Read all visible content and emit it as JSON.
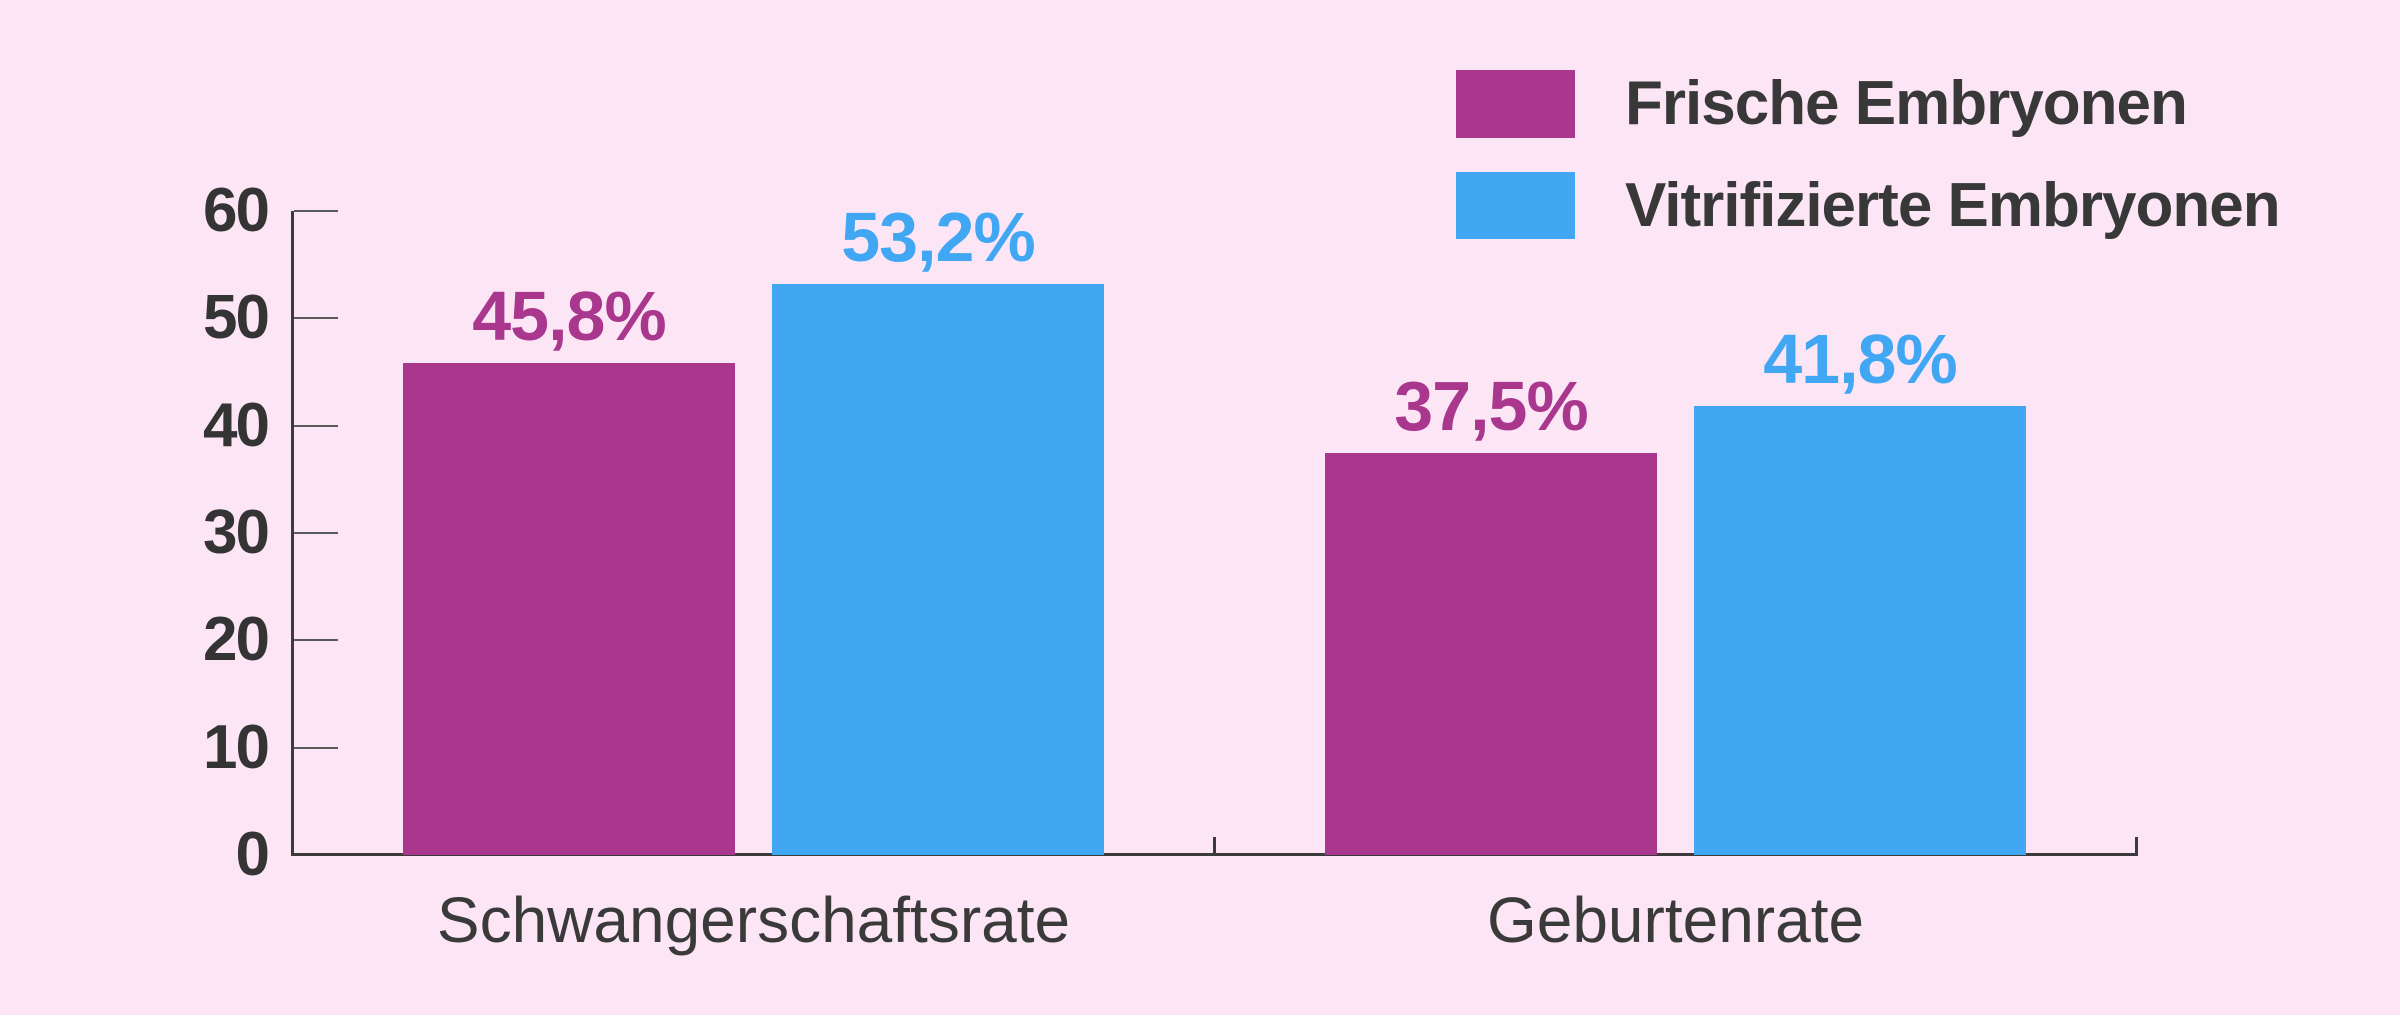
{
  "chart_data": {
    "type": "bar",
    "title": "",
    "categories": [
      "Schwangerschaftsrate",
      "Geburtenrate"
    ],
    "series": [
      {
        "name": "Frische Embryonen",
        "color": "#a9378e",
        "values": [
          45.8,
          37.5
        ],
        "labels": [
          "45,8%",
          "37,5%"
        ]
      },
      {
        "name": "Vitrifizierte Embryonen",
        "color": "#41a7f3",
        "values": [
          53.2,
          41.8
        ],
        "labels": [
          "53,2%",
          "41,8%"
        ]
      }
    ],
    "xlabel": "",
    "ylabel": "",
    "ylim": [
      0,
      60
    ],
    "yticks": [
      0,
      10,
      20,
      30,
      40,
      50,
      60
    ],
    "grid": false,
    "legend_position": "top-right",
    "colors": {
      "background": "#fce6f6",
      "axis": "#3b3b3b",
      "tick": "#5a5a5a",
      "text": "#3a3a3a"
    }
  }
}
